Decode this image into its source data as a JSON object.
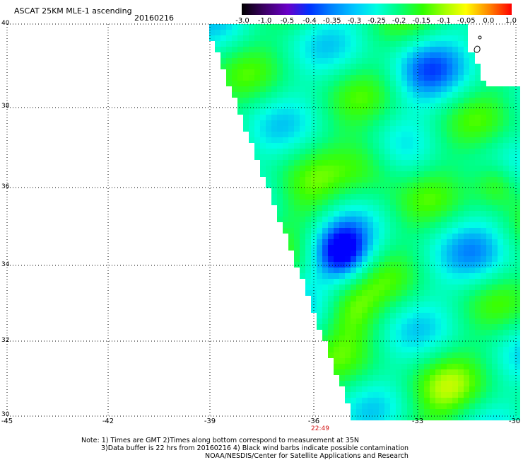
{
  "header": {
    "title": "ASCAT 25KM MLE-1 ascending",
    "date": "20160216"
  },
  "colorbar": {
    "labels": [
      "-3.0",
      "-1.0",
      "-0.5",
      "-0.4",
      "-0.35",
      "-0.3",
      "-0.25",
      "-0.2",
      "-0.15",
      "-0.1",
      "-0.05",
      "0.0",
      "1.0"
    ],
    "colors": [
      "#000000",
      "#3a0060",
      "#6a00c8",
      "#0030ff",
      "#0080ff",
      "#00c8ff",
      "#00ffe0",
      "#00ff80",
      "#30ff00",
      "#a0ff00",
      "#ffff00",
      "#ff8000",
      "#ff0000"
    ]
  },
  "axes": {
    "y_ticks": [
      "40",
      "38",
      "36",
      "34",
      "32",
      "30"
    ],
    "x_ticks": [
      "-45",
      "-42",
      "-39",
      "-36",
      "-33",
      "-30"
    ],
    "time_label": "22:49"
  },
  "footer": {
    "line1": "Note: 1) Times are GMT 2)Times along bottom correspond to measurement at 35N",
    "line2": "3)Data buffer is 22 hrs from 20160216 4) Black wind barbs indicate possible contamination",
    "line3": "NOAA/NESDIS/Center for Satellite Applications and Research"
  }
}
